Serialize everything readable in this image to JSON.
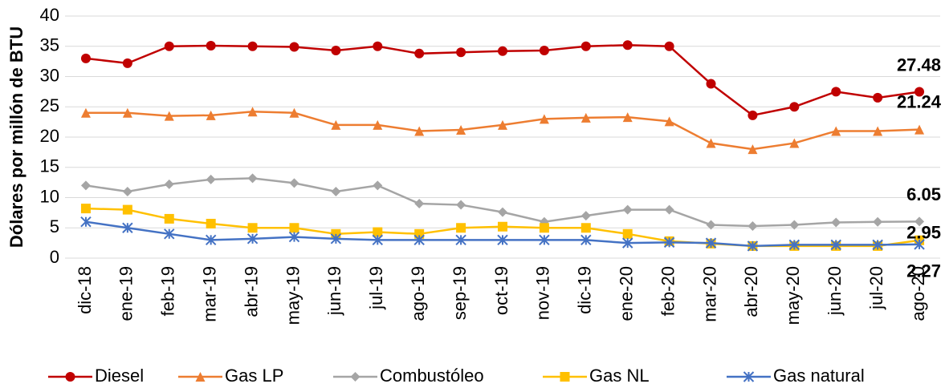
{
  "chart_data": {
    "type": "line",
    "y_label": "Dólares por millón de BTU",
    "categories": [
      "dic-18",
      "ene-19",
      "feb-19",
      "mar-19",
      "abr-19",
      "may-19",
      "jun-19",
      "jul-19",
      "ago-19",
      "sep-19",
      "oct-19",
      "nov-19",
      "dic-19",
      "ene-20",
      "feb-20",
      "mar-20",
      "abr-20",
      "may-20",
      "jun-20",
      "jul-20",
      "ago-20"
    ],
    "series": [
      {
        "name": "Diesel",
        "color": "#c00000",
        "marker": "circle",
        "values": [
          33,
          32.2,
          35,
          35.1,
          35,
          34.9,
          34.3,
          35,
          33.8,
          34,
          34.2,
          34.3,
          35,
          35.2,
          35,
          28.8,
          23.6,
          25,
          27.5,
          26.5,
          27.48
        ]
      },
      {
        "name": "Gas LP",
        "color": "#ed7d31",
        "marker": "triangle",
        "values": [
          24,
          24,
          23.5,
          23.6,
          24.2,
          24,
          22,
          22,
          21,
          21.2,
          22,
          23,
          23.2,
          23.3,
          22.6,
          19,
          18,
          19,
          21,
          21,
          21.24
        ]
      },
      {
        "name": "Combustóleo",
        "color": "#a5a5a5",
        "marker": "diamond",
        "values": [
          12,
          11,
          12.2,
          13,
          13.2,
          12.4,
          11,
          12,
          9,
          8.8,
          7.6,
          6,
          7,
          8,
          8,
          5.5,
          5.3,
          5.5,
          5.9,
          6,
          6.05
        ]
      },
      {
        "name": "Gas NL",
        "color": "#ffc000",
        "marker": "square",
        "values": [
          8.2,
          8,
          6.5,
          5.7,
          5,
          5,
          4,
          4.3,
          4,
          5,
          5.2,
          5,
          5,
          4,
          2.8,
          2.4,
          2,
          2,
          2,
          2,
          2.95
        ]
      },
      {
        "name": "Gas natural",
        "color": "#4472c4",
        "marker": "star",
        "values": [
          6,
          5,
          4,
          3,
          3.2,
          3.5,
          3.2,
          3,
          3,
          3,
          3,
          3,
          3,
          2.5,
          2.6,
          2.5,
          2,
          2.2,
          2.2,
          2.2,
          2.27
        ]
      }
    ],
    "ylim": [
      0,
      40
    ],
    "yticks": [
      0,
      5,
      10,
      15,
      20,
      25,
      30,
      35,
      40
    ],
    "grid": true,
    "legend": "bottom"
  }
}
